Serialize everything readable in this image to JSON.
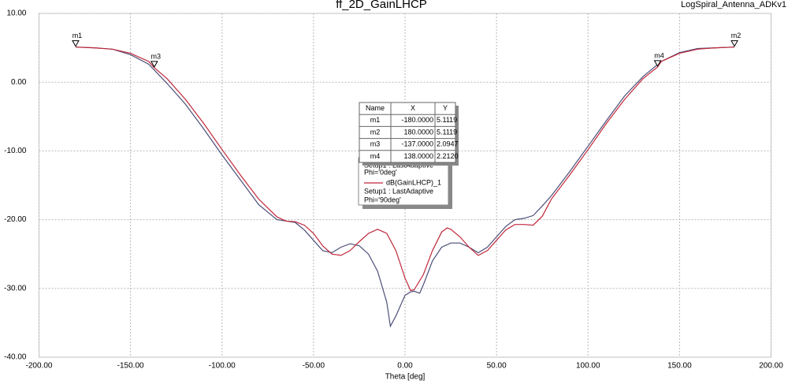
{
  "chart_data": {
    "type": "line",
    "title": "ff_2D_GainLHCP",
    "design_name": "LogSpiral_Antenna_ADKv1",
    "x_label": "Theta [deg]",
    "xlim": [
      -200,
      200
    ],
    "ylim": [
      -40,
      10
    ],
    "xticks": [
      {
        "value": -200,
        "label": "-200.00"
      },
      {
        "value": -150,
        "label": "-150.00"
      },
      {
        "value": -100,
        "label": "-100.00"
      },
      {
        "value": -50,
        "label": "-50.00"
      },
      {
        "value": 0,
        "label": "0.00"
      },
      {
        "value": 50,
        "label": "50.00"
      },
      {
        "value": 100,
        "label": "100.00"
      },
      {
        "value": 150,
        "label": "150.00"
      },
      {
        "value": 200,
        "label": "200.00"
      }
    ],
    "yticks": [
      {
        "value": 10,
        "label": "10.00"
      },
      {
        "value": 0,
        "label": "0.00"
      },
      {
        "value": -10,
        "label": "-10.00"
      },
      {
        "value": -20,
        "label": "-20.00"
      },
      {
        "value": -30,
        "label": "-30.00"
      },
      {
        "value": -40,
        "label": "-40.00"
      }
    ],
    "grid": true,
    "series": [
      {
        "setup": "Setup1 : LastAdaptive",
        "phi": "Phi='0deg'",
        "color": "#4b4f78",
        "x": [
          -180,
          -170,
          -160,
          -150,
          -140,
          -130,
          -120,
          -110,
          -100,
          -90,
          -80,
          -70,
          -65,
          -60,
          -55,
          -50,
          -45,
          -40,
          -35,
          -30,
          -25,
          -20,
          -15,
          -10,
          -8,
          -5,
          0,
          3,
          5,
          8,
          10,
          15,
          20,
          25,
          30,
          35,
          40,
          45,
          50,
          55,
          60,
          65,
          70,
          75,
          80,
          90,
          100,
          110,
          120,
          130,
          140,
          150,
          160,
          170,
          180
        ],
        "values": [
          5.1,
          5.0,
          4.8,
          4.0,
          2.6,
          -0.2,
          -3.2,
          -6.8,
          -10.6,
          -14.2,
          -17.8,
          -20,
          -20.2,
          -20.4,
          -21.5,
          -23,
          -24.5,
          -24.8,
          -24,
          -23.5,
          -23.8,
          -25,
          -27.5,
          -32,
          -35.5,
          -34,
          -31,
          -30.5,
          -30.4,
          -30.7,
          -29.5,
          -26,
          -24,
          -23.4,
          -23.4,
          -24,
          -24.8,
          -24,
          -22.5,
          -21,
          -20,
          -19.8,
          -19.4,
          -18,
          -16.5,
          -13,
          -9.3,
          -5.6,
          -2,
          0.8,
          3.0,
          4.3,
          4.9,
          5.0,
          5.1
        ]
      },
      {
        "name": "dB(GainLHCP)_1",
        "setup": "Setup1 : LastAdaptive",
        "phi": "Phi='90deg'",
        "color": "#c0283a",
        "x": [
          -180,
          -170,
          -160,
          -150,
          -140,
          -137,
          -130,
          -120,
          -110,
          -100,
          -90,
          -80,
          -70,
          -65,
          -60,
          -55,
          -50,
          -45,
          -40,
          -35,
          -30,
          -25,
          -20,
          -15,
          -10,
          -5,
          0,
          3,
          5,
          10,
          15,
          20,
          23,
          25,
          30,
          35,
          40,
          45,
          50,
          55,
          60,
          65,
          70,
          75,
          80,
          90,
          100,
          110,
          120,
          130,
          138,
          140,
          150,
          160,
          170,
          180
        ],
        "values": [
          5.1,
          5.0,
          4.8,
          4.2,
          3.0,
          2.1,
          0.5,
          -2.5,
          -6,
          -9.8,
          -13.5,
          -17,
          -19.6,
          -20.2,
          -20.3,
          -20.8,
          -22,
          -23.8,
          -25,
          -25.2,
          -24.5,
          -23.2,
          -22,
          -21.4,
          -22,
          -24.5,
          -28.5,
          -30.3,
          -30.2,
          -28,
          -24.5,
          -21.8,
          -21.2,
          -21.4,
          -22.5,
          -24,
          -25.2,
          -24.5,
          -23,
          -21.5,
          -20.7,
          -20.7,
          -20.8,
          -19.5,
          -17,
          -13.5,
          -9.8,
          -6,
          -2.5,
          0.5,
          2.2,
          3.0,
          4.2,
          4.8,
          5.0,
          5.1
        ]
      }
    ],
    "marker_table_headers": [
      "Name",
      "X",
      "Y"
    ],
    "markers": [
      {
        "name": "m1",
        "x": -180,
        "y": 5.1119,
        "x_label": "-180.0000",
        "y_label": "5.1119"
      },
      {
        "name": "m2",
        "x": 180,
        "y": 5.1119,
        "x_label": "180.0000",
        "y_label": "5.1119"
      },
      {
        "name": "m3",
        "x": -137,
        "y": 2.0947,
        "x_label": "-137.0000",
        "y_label": "2.0947"
      },
      {
        "name": "m4",
        "x": 138,
        "y": 2.212,
        "x_label": "138.0000",
        "y_label": "2.2120"
      }
    ]
  }
}
